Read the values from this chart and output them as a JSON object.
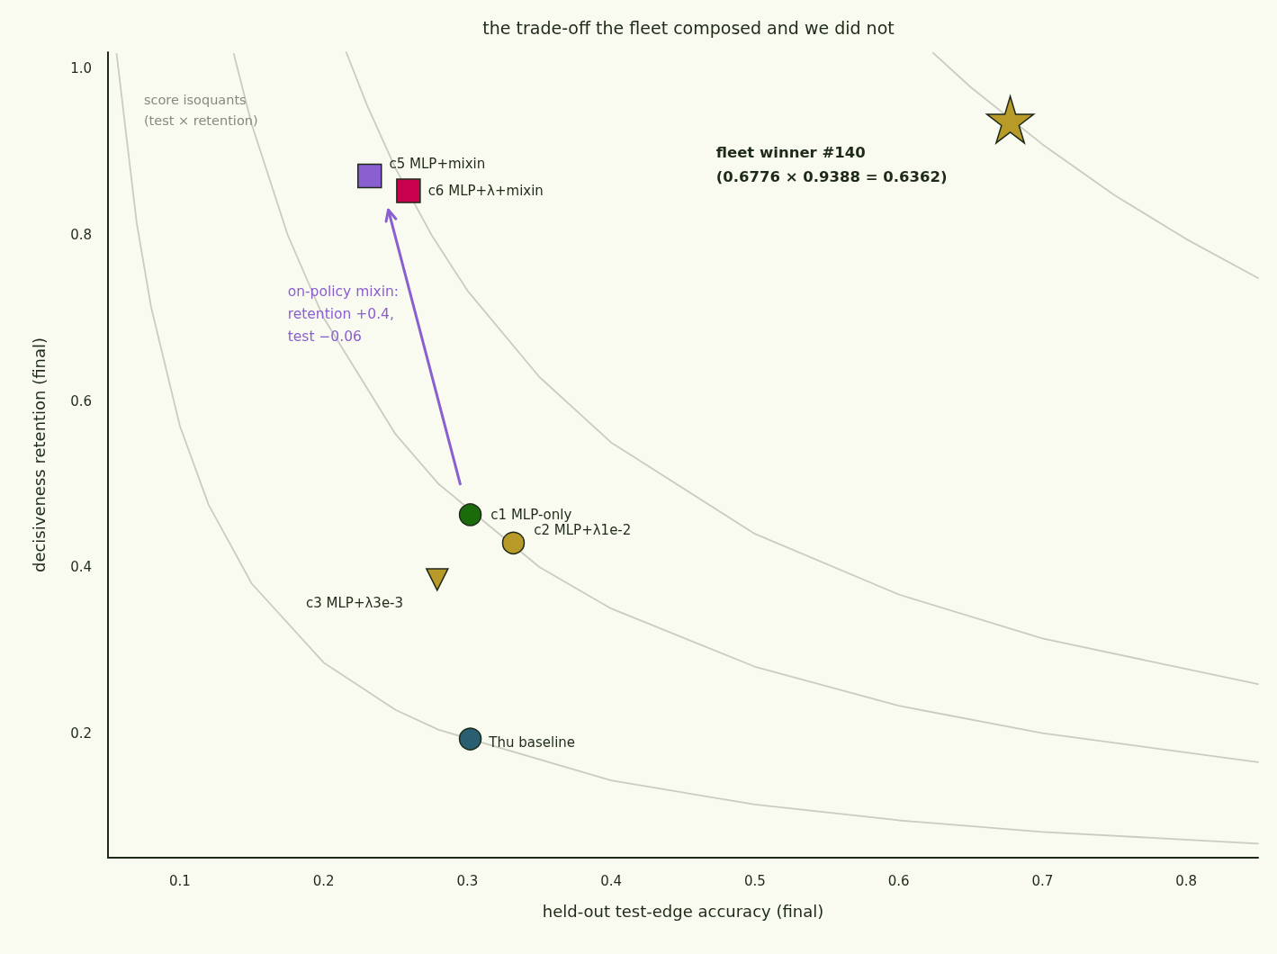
{
  "chart_data": {
    "type": "scatter",
    "title": "the trade-off the fleet composed and we did not",
    "xlabel": "held-out test-edge accuracy (final)",
    "ylabel": "decisiveness retention (final)",
    "xlim": [
      0.05,
      0.85
    ],
    "ylim": [
      0.05,
      1.02
    ],
    "xticks": [
      0.1,
      0.2,
      0.3,
      0.4,
      0.5,
      0.6,
      0.7,
      0.8
    ],
    "yticks": [
      0.2,
      0.4,
      0.6,
      0.8,
      {
        "value": 1.0,
        "label": "1.0"
      }
    ],
    "grid": false,
    "legend": false,
    "annotations": [
      "score isoquants\n(test × retention)",
      "on-policy mixin:\nretention +0.4,\ntest −0.06",
      "fleet winner #140\n(0.6776 × 0.9388 = 0.6362)"
    ],
    "series": [
      {
        "type": "line",
        "marker": "none",
        "color": "#cbccc0",
        "x": [
          0.056,
          0.07,
          0.08,
          0.1,
          0.12,
          0.15,
          0.2,
          0.25,
          0.28,
          0.4,
          0.5,
          0.6,
          0.7,
          0.85
        ],
        "values": [
          1.018,
          0.814,
          0.713,
          0.57,
          0.475,
          0.38,
          0.285,
          0.228,
          0.204,
          0.143,
          0.114,
          0.095,
          0.081,
          0.067
        ]
      },
      {
        "type": "line",
        "marker": "none",
        "color": "#cbccc0",
        "x": [
          0.1375,
          0.15,
          0.175,
          0.2,
          0.25,
          0.28,
          0.35,
          0.4,
          0.5,
          0.6,
          0.7,
          0.85
        ],
        "values": [
          1.018,
          0.933,
          0.8,
          0.7,
          0.56,
          0.5,
          0.4,
          0.35,
          0.28,
          0.233,
          0.2,
          0.165
        ]
      },
      {
        "type": "line",
        "marker": "none",
        "color": "#cbccc0",
        "x": [
          0.2157,
          0.23,
          0.25,
          0.275,
          0.3,
          0.35,
          0.4,
          0.5,
          0.6,
          0.7,
          0.85
        ],
        "values": [
          1.02,
          0.957,
          0.88,
          0.8,
          0.733,
          0.629,
          0.55,
          0.44,
          0.367,
          0.314,
          0.259
        ]
      },
      {
        "type": "line",
        "marker": "none",
        "color": "#cbccc0",
        "x": [
          0.624,
          0.65,
          0.7,
          0.75,
          0.8,
          0.85
        ],
        "values": [
          1.019,
          0.978,
          0.909,
          0.848,
          0.795,
          0.748
        ]
      },
      {
        "name": "c1 MLP-only",
        "marker": "circle",
        "color": "#1a6b0a",
        "x": [
          0.302
        ],
        "values": [
          0.463
        ]
      },
      {
        "name": "c2 MLP+λ1e-2",
        "marker": "circle",
        "color": "#b89a28",
        "x": [
          0.332
        ],
        "values": [
          0.429
        ]
      },
      {
        "name": "c3 MLP+λ3e-3",
        "marker": "triangle",
        "color": "#b89a28",
        "x": [
          0.279
        ],
        "values": [
          0.385
        ]
      },
      {
        "name": "c5 MLP+mixin",
        "marker": "square",
        "color": "#8a5fd0",
        "x": [
          0.232
        ],
        "values": [
          0.871
        ]
      },
      {
        "name": "c6 MLP+λ+mixin",
        "marker": "square",
        "color": "#c8004e",
        "x": [
          0.259
        ],
        "values": [
          0.853
        ]
      },
      {
        "name": "Thu baseline",
        "marker": "circle",
        "color": "#2a5f72",
        "x": [
          0.302
        ],
        "values": [
          0.193
        ]
      },
      {
        "marker": "star",
        "color": "#b89a28",
        "x": [
          0.6776
        ],
        "values": [
          0.9388
        ]
      }
    ]
  }
}
